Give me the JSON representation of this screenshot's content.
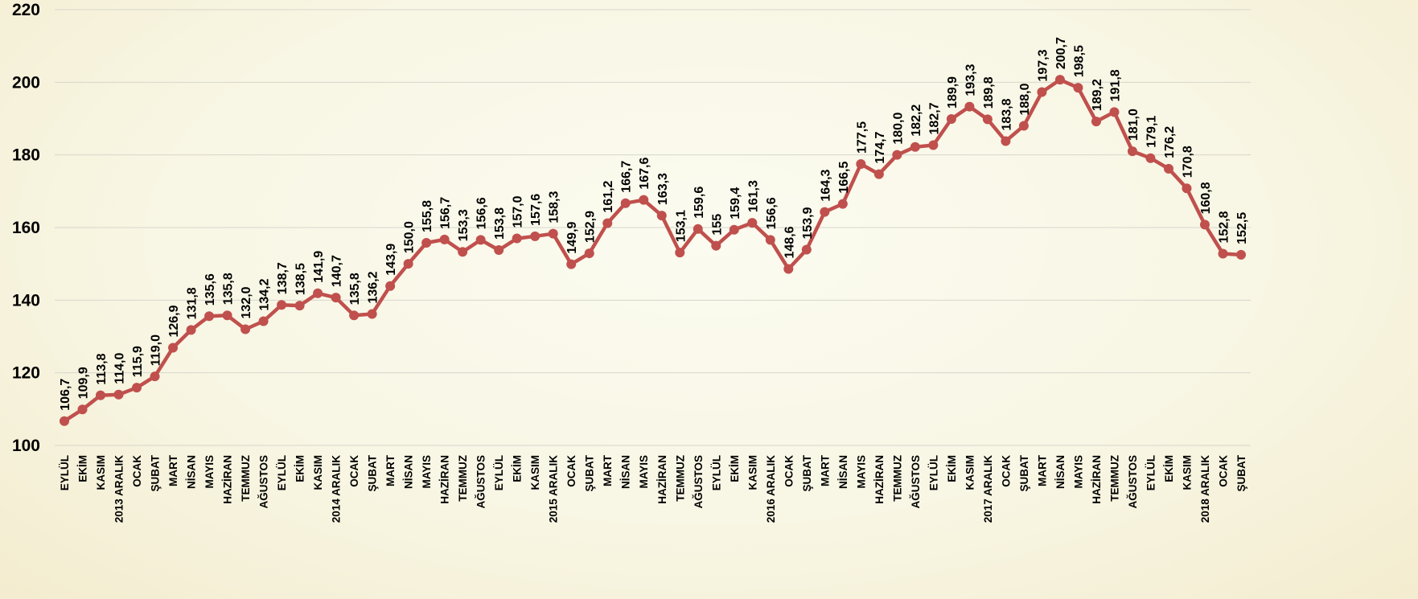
{
  "chart_data": {
    "type": "line",
    "title": "",
    "xlabel": "",
    "ylabel": "",
    "ylim": [
      100,
      220
    ],
    "yticks": [
      100,
      120,
      140,
      160,
      180,
      200,
      220
    ],
    "grid": true,
    "legend": "none",
    "colors": {
      "line": "#c0504d",
      "marker": "#c0504d"
    },
    "categories": [
      "EYLÜL",
      "EKİM",
      "KASIM",
      "2013 ARALIK",
      "OCAK",
      "ŞUBAT",
      "MART",
      "NİSAN",
      "MAYIS",
      "HAZİRAN",
      "TEMMUZ",
      "AĞUSTOS",
      "EYLÜL",
      "EKİM",
      "KASIM",
      "2014 ARALIK",
      "OCAK",
      "ŞUBAT",
      "MART",
      "NİSAN",
      "MAYIS",
      "HAZİRAN",
      "TEMMUZ",
      "AĞUSTOS",
      "EYLÜL",
      "EKİM",
      "KASIM",
      "2015 ARALIK",
      "OCAK",
      "ŞUBAT",
      "MART",
      "NİSAN",
      "MAYIS",
      "HAZİRAN",
      "TEMMUZ",
      "AĞUSTOS",
      "EYLÜL",
      "EKİM",
      "KASIM",
      "2016 ARALIK",
      "OCAK",
      "ŞUBAT",
      "MART",
      "NİSAN",
      "MAYIS",
      "HAZİRAN",
      "TEMMUZ",
      "AĞUSTOS",
      "EYLÜL",
      "EKİM",
      "KASIM",
      "2017 ARALIK",
      "OCAK",
      "ŞUBAT",
      "MART",
      "NİSAN",
      "MAYIS",
      "HAZİRAN",
      "TEMMUZ",
      "AĞUSTOS",
      "EYLÜL",
      "EKİM",
      "KASIM",
      "2018 ARALIK",
      "OCAK",
      "ŞUBAT"
    ],
    "values": [
      106.7,
      109.9,
      113.8,
      114.0,
      115.9,
      119.0,
      126.9,
      131.8,
      135.6,
      135.8,
      132.0,
      134.2,
      138.7,
      138.5,
      141.9,
      140.7,
      135.8,
      136.2,
      143.9,
      150.0,
      155.8,
      156.7,
      153.3,
      156.6,
      153.8,
      157.0,
      157.6,
      158.3,
      149.9,
      152.9,
      161.2,
      166.7,
      167.6,
      163.3,
      153.1,
      159.6,
      155,
      159.4,
      161.3,
      156.6,
      148.6,
      153.9,
      164.3,
      166.5,
      177.5,
      174.7,
      180.0,
      182.2,
      182.7,
      189.9,
      193.3,
      189.8,
      183.8,
      188.0,
      197.3,
      200.7,
      198.5,
      189.2,
      191.8,
      181.0,
      179.1,
      176.2,
      170.8,
      160.8,
      152.8,
      152.5
    ],
    "labels": [
      "106,7",
      "109,9",
      "113,8",
      "114,0",
      "115,9",
      "119,0",
      "126,9",
      "131,8",
      "135,6",
      "135,8",
      "132,0",
      "134,2",
      "138,7",
      "138,5",
      "141,9",
      "140,7",
      "135,8",
      "136,2",
      "143,9",
      "150,0",
      "155,8",
      "156,7",
      "153,3",
      "156,6",
      "153,8",
      "157,0",
      "157,6",
      "158,3",
      "149,9",
      "152,9",
      "161,2",
      "166,7",
      "167,6",
      "163,3",
      "153,1",
      "159,6",
      "155",
      "159,4",
      "161,3",
      "156,6",
      "148,6",
      "153,9",
      "164,3",
      "166,5",
      "177,5",
      "174,7",
      "180,0",
      "182,2",
      "182,7",
      "189,9",
      "193,3",
      "189,8",
      "183,8",
      "188,0",
      "197,3",
      "200,7",
      "198,5",
      "189,2",
      "191,8",
      "181,0",
      "179,1",
      "176,2",
      "170,8",
      "160,8",
      "152,8",
      "152,5"
    ]
  }
}
